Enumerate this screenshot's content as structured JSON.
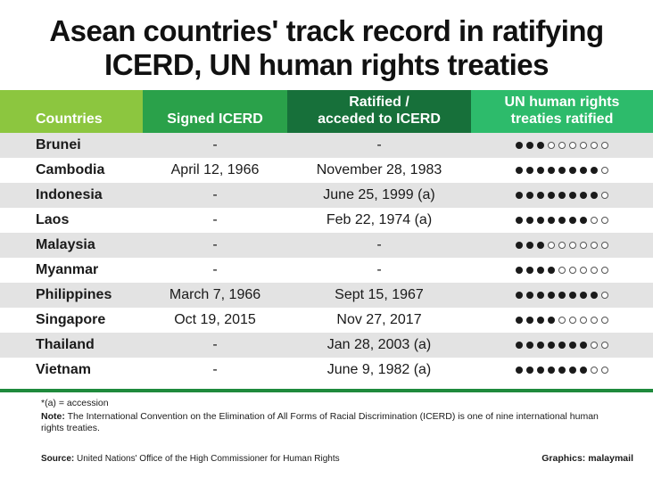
{
  "title": {
    "line1": "Asean countries' track record in ratifying",
    "line2": "ICERD, UN human rights treaties"
  },
  "table": {
    "headers": {
      "countries": "Countries",
      "signed": "Signed ICERD",
      "ratified_l1": "Ratified /",
      "ratified_l2": "acceded to ICERD",
      "un_l1": "UN human rights",
      "un_l2": "treaties ratified"
    },
    "total_treaties": 9,
    "rows": [
      {
        "country": "Brunei",
        "signed": "-",
        "ratified": "-",
        "treaties": 3
      },
      {
        "country": "Cambodia",
        "signed": "April 12, 1966",
        "ratified": "November 28, 1983",
        "treaties": 8
      },
      {
        "country": "Indonesia",
        "signed": "-",
        "ratified": "June 25, 1999 (a)",
        "treaties": 8
      },
      {
        "country": "Laos",
        "signed": "-",
        "ratified": "Feb 22, 1974 (a)",
        "treaties": 7
      },
      {
        "country": "Malaysia",
        "signed": "-",
        "ratified": "-",
        "treaties": 3
      },
      {
        "country": "Myanmar",
        "signed": "-",
        "ratified": "-",
        "treaties": 4
      },
      {
        "country": "Philippines",
        "signed": "March 7, 1966",
        "ratified": "Sept 15, 1967",
        "treaties": 8
      },
      {
        "country": "Singapore",
        "signed": "Oct 19, 2015",
        "ratified": "Nov 27, 2017",
        "treaties": 4
      },
      {
        "country": "Thailand",
        "signed": "-",
        "ratified": "Jan 28, 2003 (a)",
        "treaties": 7
      },
      {
        "country": "Vietnam",
        "signed": "-",
        "ratified": "June 9, 1982 (a)",
        "treaties": 7
      }
    ]
  },
  "footnote": "*(a) = accession",
  "note": {
    "label": "Note:",
    "text": "The International Convention on the Elimination of All Forms of Racial Discrimination (ICERD) is one of nine international human rights treaties."
  },
  "source": {
    "label": "Source:",
    "text": "United Nations' Office of the High Commissioner for Human Rights"
  },
  "credit": {
    "label": "Graphics:",
    "brand": "malaymail"
  },
  "colors": {
    "header_countries": "#8cc63f",
    "header_signed": "#2aa14a",
    "header_ratified": "#17703a",
    "header_un": "#2dbb6b",
    "rule": "#1f8a3c",
    "row_shade": "#e3e3e3"
  }
}
